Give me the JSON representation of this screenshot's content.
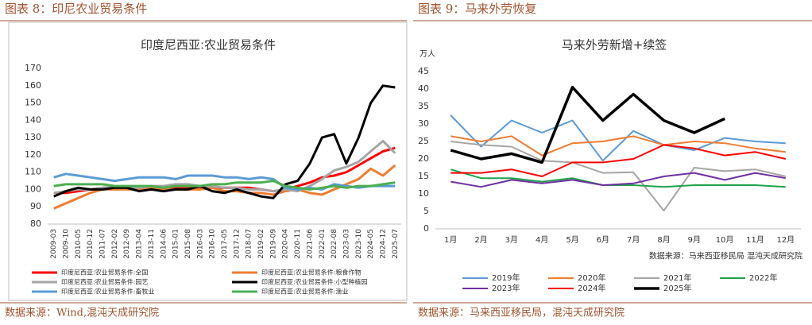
{
  "chart_data": [
    {
      "type": "line",
      "figure_title": "图表 8：印尼农业贸易条件",
      "title": "印度尼西亚:农业贸易条件",
      "source": "数据来源：Wind,混沌天成研究院",
      "categories": [
        "2009-03",
        "2009-10",
        "2010-05",
        "2010-12",
        "2011-07",
        "2012-02",
        "2012-09",
        "2013-04",
        "2013-11",
        "2014-06",
        "2015-01",
        "2015-08",
        "2016-03",
        "2016-10",
        "2017-05",
        "2017-12",
        "2018-07",
        "2019-02",
        "2019-09",
        "2020-04",
        "2020-11",
        "2021-06",
        "2022-01",
        "2022-08",
        "2023-03",
        "2023-10",
        "2024-05",
        "2024-12",
        "2025-07"
      ],
      "ylim": [
        80,
        170
      ],
      "yticks": [
        80,
        90,
        100,
        110,
        120,
        130,
        140,
        150,
        160,
        170
      ],
      "series": [
        {
          "name": "印度尼西亚:农业贸易条件:全国",
          "color": "#ff0000",
          "values": [
            98,
            98,
            99,
            100,
            101,
            101,
            101,
            100,
            101,
            101,
            101,
            101,
            101,
            101,
            101,
            101,
            101,
            100,
            99,
            100,
            102,
            104,
            107,
            108,
            110,
            114,
            118,
            122,
            124
          ]
        },
        {
          "name": "印度尼西亚:农业贸易条件:粮食作物",
          "color": "#ed7d31",
          "values": [
            89,
            92,
            95,
            98,
            100,
            100,
            100,
            100,
            101,
            100,
            100,
            100,
            100,
            101,
            99,
            99,
            98,
            98,
            97,
            99,
            100,
            98,
            97,
            100,
            103,
            106,
            112,
            108,
            114
          ]
        },
        {
          "name": "印度尼西亚:农业贸易条件:园艺",
          "color": "#a5a5a5",
          "values": [
            98,
            99,
            100,
            100,
            101,
            101,
            101,
            101,
            102,
            102,
            103,
            103,
            102,
            102,
            101,
            101,
            100,
            100,
            99,
            100,
            99,
            102,
            106,
            111,
            113,
            116,
            122,
            128,
            121
          ]
        },
        {
          "name": "印度尼西亚:农业贸易条件:小型种植园",
          "color": "#000000",
          "values": [
            96,
            99,
            101,
            100,
            100,
            101,
            101,
            99,
            100,
            99,
            100,
            100,
            102,
            99,
            98,
            100,
            98,
            96,
            95,
            103,
            105,
            115,
            130,
            132,
            115,
            130,
            150,
            160,
            159
          ]
        },
        {
          "name": "印度尼西亚:农业贸易条件:畜牧业",
          "color": "#5b9bd5",
          "values": [
            107,
            109,
            108,
            107,
            106,
            105,
            106,
            107,
            107,
            107,
            106,
            108,
            108,
            108,
            107,
            107,
            106,
            107,
            106,
            101,
            100,
            101,
            100,
            103,
            102,
            101,
            102,
            102,
            102
          ]
        },
        {
          "name": "印度尼西亚:农业贸易条件:渔业",
          "color": "#4caf50",
          "values": [
            102,
            103,
            103,
            103,
            103,
            102,
            102,
            102,
            102,
            101,
            102,
            102,
            102,
            103,
            103,
            104,
            104,
            104,
            105,
            102,
            101,
            100,
            101,
            102,
            101,
            102,
            102,
            103,
            104
          ]
        }
      ]
    },
    {
      "type": "line",
      "figure_title": "图表 9：马来外劳恢复",
      "title": "马来外劳新增+续签",
      "y_unit": "万人",
      "note": "数据来源：马来西亚移民局  混沌天成研究院",
      "source": "数据来源：马来西亚移民局，混沌天成研究院",
      "categories": [
        "1月",
        "2月",
        "3月",
        "4月",
        "5月",
        "6月",
        "7月",
        "8月",
        "9月",
        "10月",
        "11月",
        "12月"
      ],
      "ylim": [
        0,
        45
      ],
      "yticks": [
        0,
        5,
        10,
        15,
        20,
        25,
        30,
        35,
        40,
        45
      ],
      "series": [
        {
          "name": "2019年",
          "color": "#5b9bd5",
          "values": [
            32.5,
            23.5,
            31,
            27.5,
            31,
            19.5,
            28,
            24,
            22.5,
            26,
            25,
            24.5
          ]
        },
        {
          "name": "2020年",
          "color": "#ed7d31",
          "values": [
            26.5,
            25,
            26.5,
            21,
            24.5,
            25,
            26.5,
            24,
            25,
            24.5,
            23,
            22
          ]
        },
        {
          "name": "2021年",
          "color": "#a5a5a5",
          "values": [
            25,
            24,
            23.5,
            19.5,
            19,
            16,
            16.2,
            5.2,
            17.5,
            16.5,
            17,
            15
          ]
        },
        {
          "name": "2022年",
          "color": "#1fa34a",
          "values": [
            17,
            14.5,
            14.5,
            13.5,
            14.5,
            12.5,
            12.5,
            12,
            12.5,
            12.5,
            12.5,
            12
          ]
        },
        {
          "name": "2023年",
          "color": "#7030a0",
          "values": [
            13.5,
            12,
            14,
            13,
            14,
            12.5,
            13,
            15,
            16,
            14,
            16,
            14.5
          ]
        },
        {
          "name": "2024年",
          "color": "#ff0000",
          "values": [
            16,
            16,
            17,
            15,
            19,
            19,
            20,
            24,
            23,
            21,
            22,
            20
          ]
        },
        {
          "name": "2025年",
          "color": "#000000",
          "values": [
            22.5,
            20,
            21.5,
            19,
            40.5,
            31,
            38.5,
            31,
            27.5,
            31.5,
            null,
            null
          ]
        }
      ]
    }
  ]
}
